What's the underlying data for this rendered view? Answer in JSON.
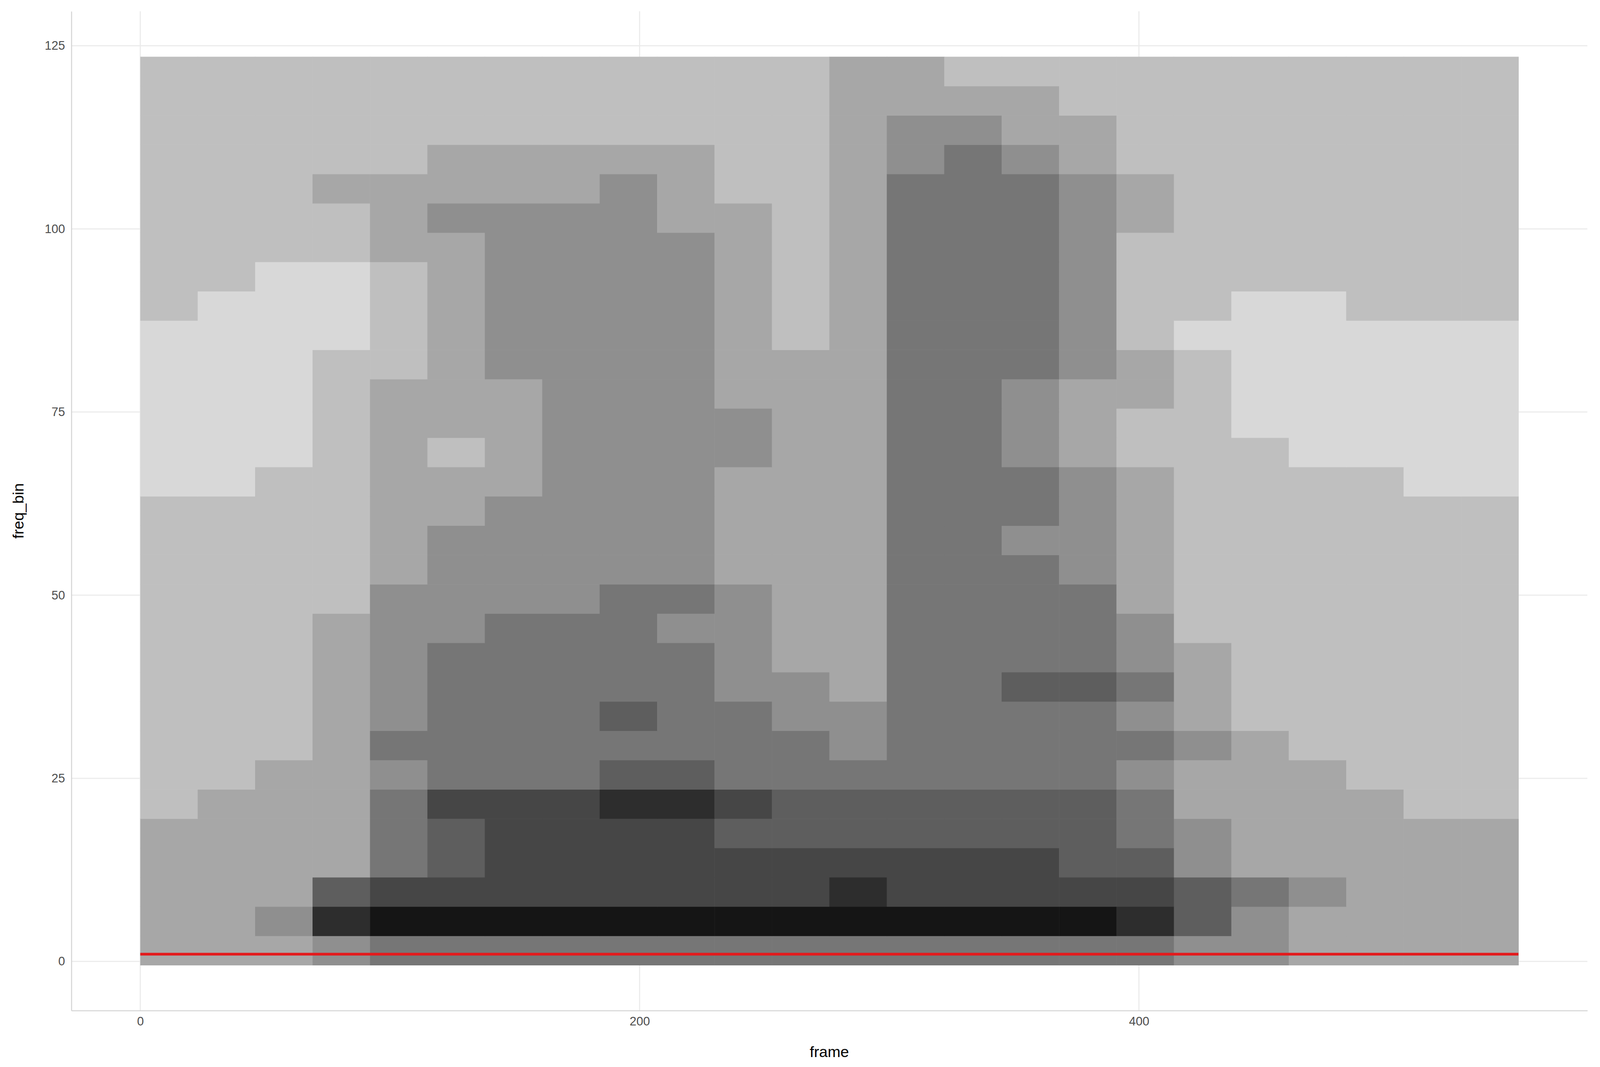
{
  "chart_data": {
    "type": "heatmap",
    "xlabel": "frame",
    "ylabel": "freq_bin",
    "xlim": [
      -27.6,
      579.6
    ],
    "ylim": [
      -6.7,
      129.7
    ],
    "xticks": [
      0,
      200,
      400
    ],
    "yticks": [
      0,
      25,
      50,
      75,
      100,
      125
    ],
    "grid": true,
    "zlim": [
      0,
      9
    ],
    "frame_edges": [
      0,
      23,
      46,
      69,
      92,
      115,
      138,
      161,
      184,
      207,
      230,
      253,
      276,
      299,
      322,
      345,
      368,
      391,
      414,
      437,
      460,
      483,
      506,
      529,
      552
    ],
    "bin_edges": [
      -0.5,
      3.5,
      7.5,
      11.5,
      15.5,
      19.5,
      23.5,
      27.5,
      31.5,
      35.5,
      39.5,
      43.5,
      47.5,
      51.5,
      55.5,
      59.5,
      63.5,
      67.5,
      71.5,
      75.5,
      79.5,
      83.5,
      87.5,
      91.5,
      95.5,
      99.5,
      103.5,
      107.5,
      111.5,
      115.5,
      119.5,
      123.5
    ],
    "values": [
      [
        3,
        3,
        3,
        4,
        5,
        5,
        5,
        5,
        5,
        5,
        5,
        5,
        5,
        5,
        5,
        5,
        5,
        5,
        4,
        4,
        3,
        3,
        3,
        3
      ],
      [
        3,
        3,
        4,
        8,
        9,
        9,
        9,
        9,
        9,
        9,
        9,
        9,
        9,
        9,
        9,
        9,
        9,
        8,
        6,
        4,
        3,
        3,
        3,
        3
      ],
      [
        3,
        3,
        3,
        6,
        7,
        7,
        7,
        7,
        7,
        7,
        7,
        7,
        8,
        7,
        7,
        7,
        7,
        7,
        6,
        5,
        4,
        3,
        3,
        3
      ],
      [
        3,
        3,
        3,
        3,
        5,
        6,
        7,
        7,
        7,
        7,
        7,
        7,
        7,
        7,
        7,
        7,
        6,
        6,
        4,
        3,
        3,
        3,
        3,
        3
      ],
      [
        3,
        3,
        3,
        3,
        5,
        6,
        7,
        7,
        7,
        7,
        6,
        6,
        6,
        6,
        6,
        6,
        6,
        5,
        4,
        3,
        3,
        3,
        3,
        3
      ],
      [
        2,
        3,
        3,
        3,
        5,
        7,
        7,
        7,
        8,
        8,
        7,
        6,
        6,
        6,
        6,
        6,
        6,
        5,
        3,
        3,
        3,
        3,
        2,
        2
      ],
      [
        2,
        2,
        3,
        3,
        4,
        5,
        5,
        5,
        6,
        6,
        5,
        5,
        5,
        5,
        5,
        5,
        5,
        4,
        3,
        3,
        3,
        2,
        2,
        2
      ],
      [
        2,
        2,
        2,
        3,
        5,
        5,
        5,
        5,
        5,
        5,
        5,
        5,
        4,
        5,
        5,
        5,
        5,
        5,
        4,
        3,
        2,
        2,
        2,
        2
      ],
      [
        2,
        2,
        2,
        3,
        4,
        5,
        5,
        5,
        6,
        5,
        5,
        4,
        4,
        5,
        5,
        5,
        5,
        4,
        3,
        2,
        2,
        2,
        2,
        2
      ],
      [
        2,
        2,
        2,
        3,
        4,
        5,
        5,
        5,
        5,
        5,
        4,
        4,
        3,
        5,
        5,
        6,
        6,
        5,
        3,
        2,
        2,
        2,
        2,
        2
      ],
      [
        2,
        2,
        2,
        3,
        4,
        5,
        5,
        5,
        5,
        5,
        4,
        3,
        3,
        5,
        5,
        5,
        5,
        4,
        3,
        2,
        2,
        2,
        2,
        2
      ],
      [
        2,
        2,
        2,
        3,
        4,
        4,
        5,
        5,
        5,
        4,
        4,
        3,
        3,
        5,
        5,
        5,
        5,
        4,
        2,
        2,
        2,
        2,
        2,
        2
      ],
      [
        2,
        2,
        2,
        2,
        4,
        4,
        4,
        4,
        5,
        5,
        4,
        3,
        3,
        5,
        5,
        5,
        5,
        3,
        2,
        2,
        2,
        2,
        2,
        2
      ],
      [
        2,
        2,
        2,
        2,
        3,
        4,
        4,
        4,
        4,
        4,
        3,
        3,
        3,
        5,
        5,
        5,
        4,
        3,
        2,
        2,
        2,
        2,
        2,
        2
      ],
      [
        2,
        2,
        2,
        2,
        3,
        4,
        4,
        4,
        4,
        4,
        3,
        3,
        3,
        5,
        5,
        4,
        4,
        3,
        2,
        2,
        2,
        2,
        2,
        2
      ],
      [
        2,
        2,
        2,
        2,
        3,
        3,
        4,
        4,
        4,
        4,
        3,
        3,
        3,
        5,
        5,
        5,
        4,
        3,
        2,
        2,
        2,
        2,
        2,
        2
      ],
      [
        1,
        1,
        2,
        2,
        3,
        3,
        3,
        4,
        4,
        4,
        3,
        3,
        3,
        5,
        5,
        5,
        4,
        3,
        2,
        2,
        2,
        2,
        1,
        1
      ],
      [
        1,
        1,
        1,
        2,
        3,
        2,
        3,
        4,
        4,
        4,
        4,
        3,
        3,
        5,
        5,
        4,
        3,
        2,
        2,
        2,
        1,
        1,
        1,
        1
      ],
      [
        1,
        1,
        1,
        2,
        3,
        3,
        3,
        4,
        4,
        4,
        4,
        3,
        3,
        5,
        5,
        4,
        3,
        2,
        2,
        1,
        1,
        1,
        1,
        1
      ],
      [
        1,
        1,
        1,
        2,
        3,
        3,
        3,
        4,
        4,
        4,
        3,
        3,
        3,
        5,
        5,
        4,
        3,
        3,
        2,
        1,
        1,
        1,
        1,
        1
      ],
      [
        1,
        1,
        1,
        2,
        2,
        3,
        4,
        4,
        4,
        4,
        3,
        3,
        3,
        5,
        5,
        5,
        4,
        3,
        2,
        1,
        1,
        1,
        1,
        1
      ],
      [
        1,
        1,
        1,
        1,
        2,
        3,
        4,
        4,
        4,
        4,
        3,
        2,
        3,
        5,
        5,
        5,
        4,
        2,
        1,
        1,
        1,
        1,
        1,
        1
      ],
      [
        2,
        1,
        1,
        1,
        2,
        3,
        4,
        4,
        4,
        4,
        3,
        2,
        3,
        5,
        5,
        5,
        4,
        2,
        2,
        1,
        1,
        2,
        2,
        2
      ],
      [
        2,
        2,
        1,
        1,
        2,
        3,
        4,
        4,
        4,
        4,
        3,
        2,
        3,
        5,
        5,
        5,
        4,
        2,
        2,
        2,
        2,
        2,
        2,
        2
      ],
      [
        2,
        2,
        2,
        2,
        3,
        3,
        4,
        4,
        4,
        4,
        3,
        2,
        3,
        5,
        5,
        5,
        4,
        2,
        2,
        2,
        2,
        2,
        2,
        2
      ],
      [
        2,
        2,
        2,
        2,
        3,
        4,
        4,
        4,
        4,
        3,
        3,
        2,
        3,
        5,
        5,
        5,
        4,
        3,
        2,
        2,
        2,
        2,
        2,
        2
      ],
      [
        2,
        2,
        2,
        3,
        3,
        3,
        3,
        3,
        4,
        3,
        2,
        2,
        3,
        5,
        5,
        5,
        4,
        3,
        2,
        2,
        2,
        2,
        2,
        2
      ],
      [
        2,
        2,
        2,
        2,
        2,
        3,
        3,
        3,
        3,
        3,
        2,
        2,
        3,
        4,
        5,
        4,
        3,
        2,
        2,
        2,
        2,
        2,
        2,
        2
      ],
      [
        2,
        2,
        2,
        2,
        2,
        2,
        2,
        2,
        2,
        2,
        2,
        2,
        3,
        4,
        4,
        3,
        3,
        2,
        2,
        2,
        2,
        2,
        2,
        2
      ],
      [
        2,
        2,
        2,
        2,
        2,
        2,
        2,
        2,
        2,
        2,
        2,
        2,
        3,
        3,
        3,
        3,
        2,
        2,
        2,
        2,
        2,
        2,
        2,
        2
      ],
      [
        2,
        2,
        2,
        2,
        2,
        2,
        2,
        2,
        2,
        2,
        2,
        2,
        3,
        3,
        2,
        2,
        2,
        2,
        2,
        2,
        2,
        2,
        2,
        2
      ]
    ],
    "series": [
      {
        "type": "line",
        "color": "#e31a1c",
        "x": [
          0,
          100,
          200,
          300,
          400,
          500,
          552
        ],
        "values": [
          1,
          1,
          1,
          1,
          1,
          1,
          1
        ]
      }
    ]
  }
}
